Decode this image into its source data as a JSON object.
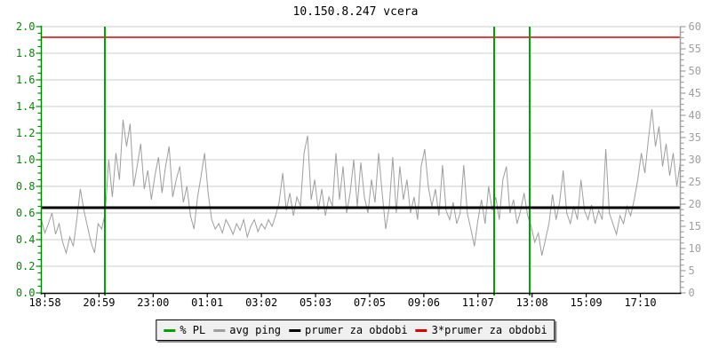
{
  "title": "10.150.8.247 vcera",
  "chart_data": {
    "type": "line",
    "title": "10.150.8.247 vcera",
    "grid": "horizontal-only",
    "x_axis": {
      "tick_labels": [
        "18:58",
        "20:59",
        "23:00",
        "01:01",
        "03:02",
        "05:03",
        "07:05",
        "09:06",
        "11:07",
        "13:08",
        "15:09",
        "17:10"
      ],
      "color": "#000000"
    },
    "left_axis": {
      "min": 0.0,
      "max": 2.0,
      "tick_step": 0.2,
      "minor_tick_step": 0.05,
      "tick_labels": [
        "0.0",
        "0.2",
        "0.4",
        "0.6",
        "0.8",
        "1.0",
        "1.2",
        "1.4",
        "1.6",
        "1.8",
        "2.0"
      ],
      "color": "#008a00"
    },
    "right_axis": {
      "min": 0,
      "max": 60,
      "tick_step": 5,
      "minor_tick_step": 1.25,
      "tick_labels": [
        "0",
        "5",
        "10",
        "15",
        "20",
        "25",
        "30",
        "35",
        "40",
        "45",
        "50",
        "55",
        "60"
      ],
      "color": "#a0a0a0"
    },
    "series": [
      {
        "name": "% PL",
        "type": "event-vlines",
        "color": "#00a000",
        "events": [
          {
            "x_frac": 0.0994,
            "approx_time": "21:12"
          },
          {
            "x_frac": 0.7086,
            "approx_time": "11:41"
          },
          {
            "x_frac": 0.7642,
            "approx_time": "12:59"
          }
        ]
      },
      {
        "name": "avg ping",
        "type": "line",
        "color": "#9e9e9e",
        "values": [
          0.55,
          0.45,
          0.52,
          0.6,
          0.44,
          0.52,
          0.38,
          0.3,
          0.42,
          0.35,
          0.55,
          0.78,
          0.62,
          0.5,
          0.38,
          0.3,
          0.52,
          0.48,
          0.6,
          1.0,
          0.72,
          1.05,
          0.85,
          1.3,
          1.1,
          1.27,
          0.8,
          0.95,
          1.12,
          0.78,
          0.92,
          0.7,
          0.88,
          1.02,
          0.75,
          0.95,
          1.1,
          0.72,
          0.85,
          0.95,
          0.68,
          0.8,
          0.58,
          0.48,
          0.72,
          0.88,
          1.05,
          0.75,
          0.55,
          0.48,
          0.52,
          0.45,
          0.55,
          0.5,
          0.44,
          0.52,
          0.47,
          0.55,
          0.42,
          0.5,
          0.55,
          0.46,
          0.52,
          0.48,
          0.55,
          0.5,
          0.58,
          0.68,
          0.9,
          0.62,
          0.75,
          0.58,
          0.72,
          0.65,
          1.05,
          1.18,
          0.7,
          0.85,
          0.62,
          0.78,
          0.58,
          0.72,
          0.65,
          1.05,
          0.7,
          0.95,
          0.6,
          0.75,
          1.0,
          0.65,
          0.98,
          0.72,
          0.6,
          0.85,
          0.68,
          1.05,
          0.75,
          0.48,
          0.65,
          1.02,
          0.6,
          0.95,
          0.7,
          0.85,
          0.6,
          0.72,
          0.55,
          0.95,
          1.08,
          0.8,
          0.65,
          0.78,
          0.58,
          0.96,
          0.62,
          0.55,
          0.68,
          0.52,
          0.6,
          0.96,
          0.6,
          0.48,
          0.35,
          0.55,
          0.7,
          0.52,
          0.8,
          0.62,
          0.72,
          0.55,
          0.85,
          0.95,
          0.6,
          0.7,
          0.52,
          0.62,
          0.75,
          0.58,
          0.5,
          0.38,
          0.45,
          0.28,
          0.4,
          0.52,
          0.74,
          0.55,
          0.68,
          0.92,
          0.6,
          0.52,
          0.65,
          0.55,
          0.85,
          0.62,
          0.55,
          0.66,
          0.52,
          0.62,
          0.55,
          1.08,
          0.6,
          0.52,
          0.44,
          0.58,
          0.52,
          0.65,
          0.58,
          0.7,
          0.85,
          1.05,
          0.9,
          1.15,
          1.38,
          1.1,
          1.25,
          0.95,
          1.12,
          0.88,
          1.05,
          0.8,
          0.98
        ]
      },
      {
        "name": "prumer za obdobi",
        "type": "hline",
        "color": "#000000",
        "value": 0.64
      },
      {
        "name": "3*prumer za obdobi",
        "type": "hline",
        "color": "#dd0000",
        "value": 1.92
      }
    ]
  }
}
